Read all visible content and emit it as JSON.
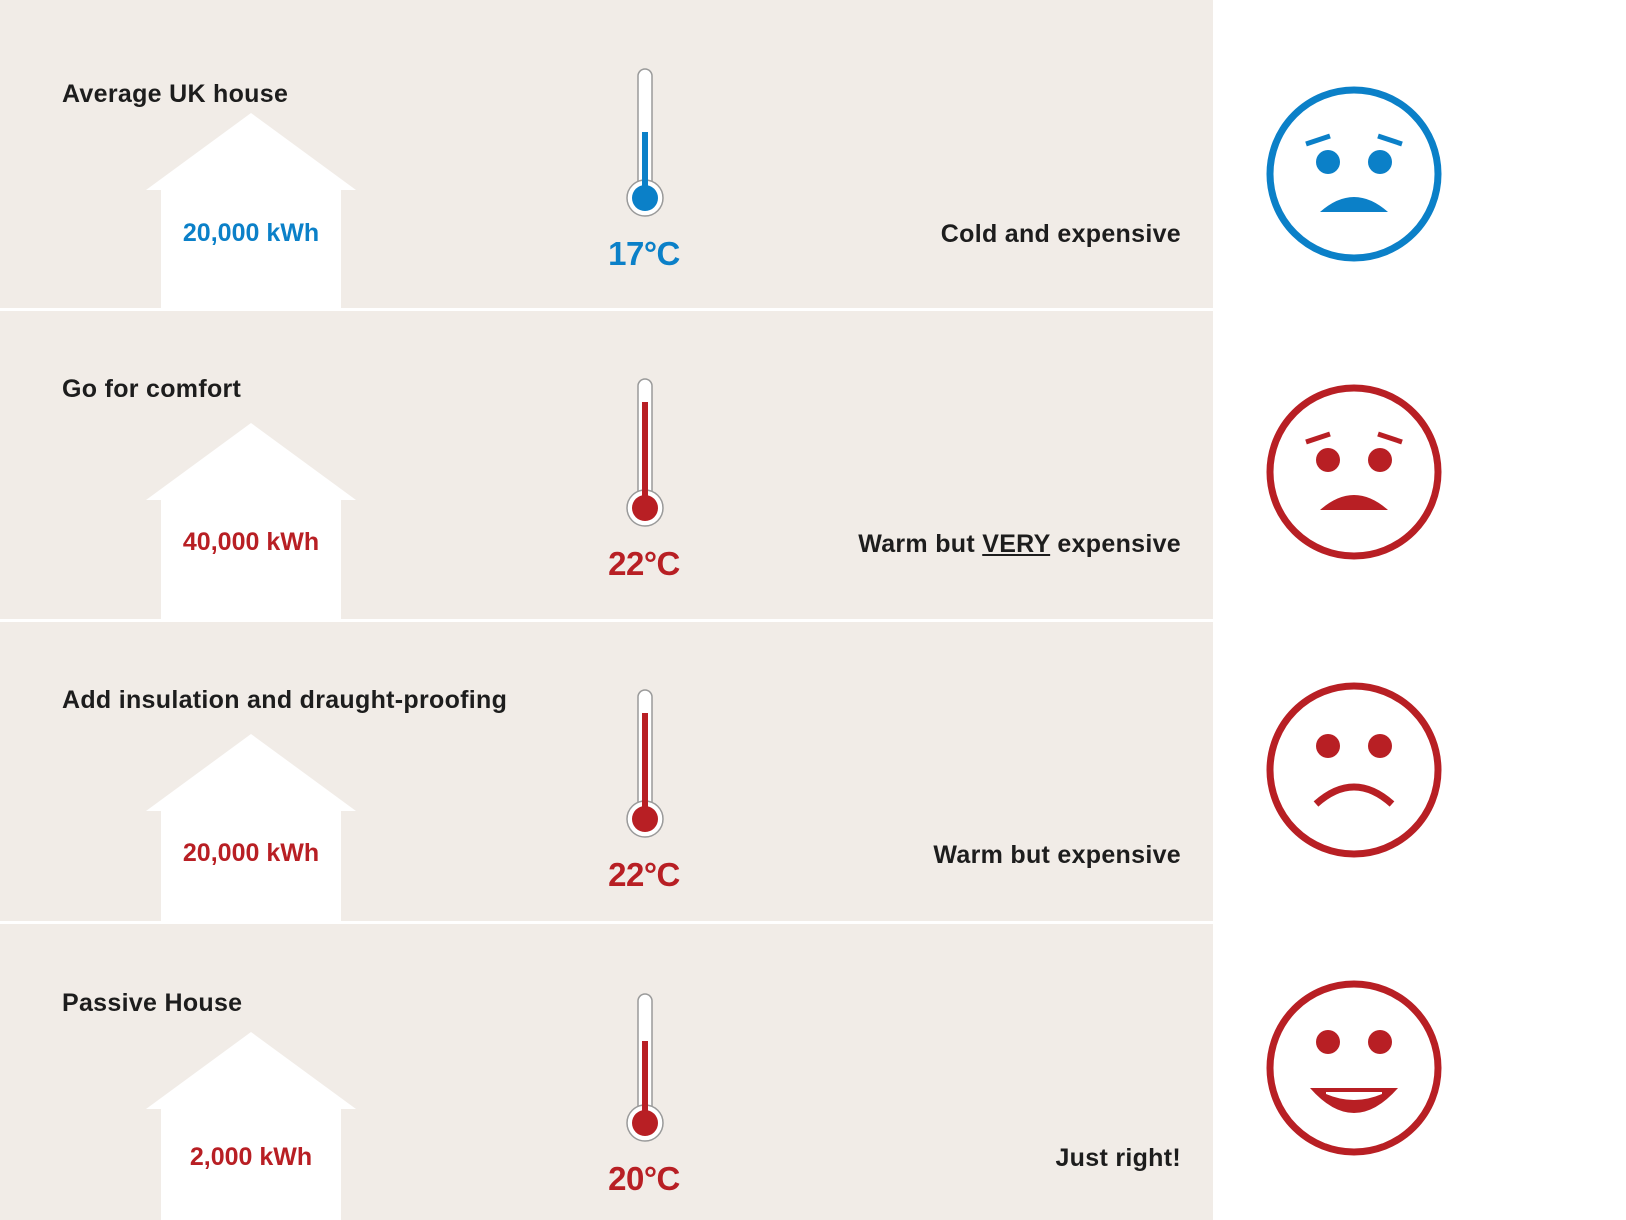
{
  "rows": [
    {
      "title": "Average UK house",
      "energy": "20,000 kWh",
      "temperature": "17°C",
      "temperature_value": 17,
      "verdict_parts": [
        "Cold and expensive",
        "",
        ""
      ],
      "color": "#0b80c8",
      "mood": "worried-sad"
    },
    {
      "title": "Go for comfort",
      "energy": "40,000 kWh",
      "temperature": "22°C",
      "temperature_value": 22,
      "verdict_parts": [
        "Warm but ",
        "VERY",
        " expensive"
      ],
      "color": "#b81f24",
      "mood": "worried-sad"
    },
    {
      "title": "Add insulation and draught-proofing",
      "energy": "20,000 kWh",
      "temperature": "22°C",
      "temperature_value": 22,
      "verdict_parts": [
        "Warm but expensive",
        "",
        ""
      ],
      "color": "#b81f24",
      "mood": "sad"
    },
    {
      "title": "Passive House",
      "energy": "2,000 kWh",
      "temperature": "20°C",
      "temperature_value": 20,
      "verdict_parts": [
        "Just right!",
        "",
        ""
      ],
      "color": "#b81f24",
      "mood": "happy"
    }
  ]
}
